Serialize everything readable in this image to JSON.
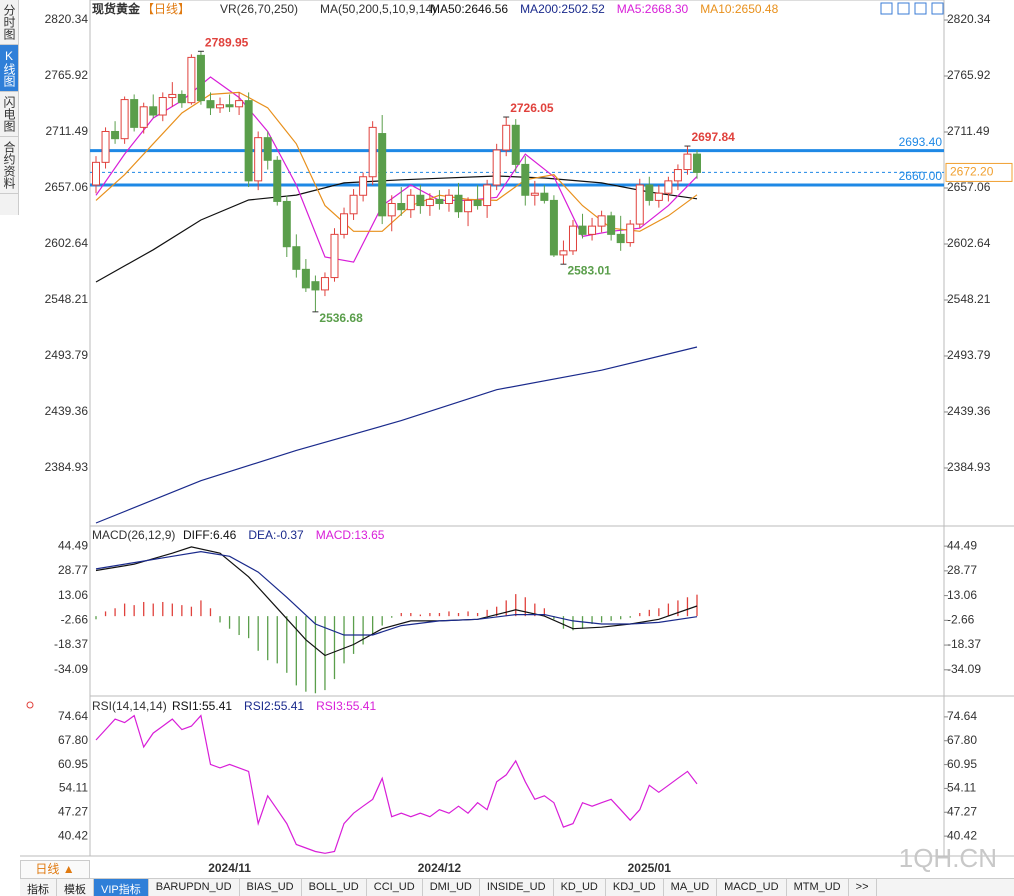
{
  "header": {
    "title": "现货黄金",
    "period": "【日线】",
    "indicator": "VR(26,70,250)",
    "ma_params": "MA(50,200,5,10,9,14)"
  },
  "sidebar": [
    "分时图",
    "K线图",
    "闪电图",
    "合约资料"
  ],
  "chart_data": [
    {
      "type": "candlestick",
      "up_color": "#e0413c",
      "down_color": "#5a9e4b",
      "ylim": [
        2329.5,
        2839.8
      ],
      "yticks": [
        2820.34,
        2765.92,
        2711.49,
        2657.06,
        2602.64,
        2548.21,
        2493.79,
        2439.36,
        2384.93
      ],
      "candles": [
        [
          2660,
          2688,
          2652,
          2682
        ],
        [
          2682,
          2716,
          2676,
          2712
        ],
        [
          2712,
          2722,
          2700,
          2705
        ],
        [
          2705,
          2746,
          2700,
          2743
        ],
        [
          2743,
          2748,
          2712,
          2716
        ],
        [
          2716,
          2740,
          2710,
          2736
        ],
        [
          2736,
          2748,
          2725,
          2728
        ],
        [
          2728,
          2750,
          2722,
          2745
        ],
        [
          2745,
          2760,
          2736,
          2748
        ],
        [
          2748,
          2752,
          2735,
          2740
        ],
        [
          2740,
          2787,
          2738,
          2784
        ],
        [
          2786,
          2789.95,
          2738,
          2742
        ],
        [
          2742,
          2750,
          2728,
          2735
        ],
        [
          2735,
          2745,
          2730,
          2738
        ],
        [
          2738,
          2748,
          2731,
          2736
        ],
        [
          2736,
          2750,
          2728,
          2742
        ],
        [
          2742,
          2750,
          2658,
          2664
        ],
        [
          2664,
          2712,
          2655,
          2706
        ],
        [
          2706,
          2712,
          2675,
          2684
        ],
        [
          2684,
          2688,
          2640,
          2644
        ],
        [
          2644,
          2650,
          2590,
          2600
        ],
        [
          2600,
          2612,
          2570,
          2578
        ],
        [
          2578,
          2588,
          2556,
          2560
        ],
        [
          2566,
          2572,
          2536.68,
          2558
        ],
        [
          2558,
          2575,
          2552,
          2570
        ],
        [
          2570,
          2618,
          2566,
          2612
        ],
        [
          2612,
          2638,
          2608,
          2632
        ],
        [
          2632,
          2656,
          2626,
          2650
        ],
        [
          2650,
          2672,
          2644,
          2668
        ],
        [
          2668,
          2722,
          2660,
          2716
        ],
        [
          2710,
          2728,
          2622,
          2630
        ],
        [
          2630,
          2650,
          2615,
          2642
        ],
        [
          2642,
          2658,
          2630,
          2636
        ],
        [
          2636,
          2656,
          2628,
          2650
        ],
        [
          2650,
          2660,
          2632,
          2640
        ],
        [
          2640,
          2652,
          2630,
          2646
        ],
        [
          2646,
          2655,
          2636,
          2642
        ],
        [
          2642,
          2656,
          2634,
          2650
        ],
        [
          2650,
          2662,
          2628,
          2634
        ],
        [
          2634,
          2648,
          2620,
          2645
        ],
        [
          2645,
          2660,
          2636,
          2640
        ],
        [
          2640,
          2665,
          2628,
          2660
        ],
        [
          2660,
          2700,
          2655,
          2694
        ],
        [
          2694,
          2726.05,
          2688,
          2718
        ],
        [
          2718,
          2724,
          2672,
          2680
        ],
        [
          2680,
          2688,
          2640,
          2650
        ],
        [
          2650,
          2664,
          2640,
          2652
        ],
        [
          2652,
          2660,
          2642,
          2645
        ],
        [
          2645,
          2650,
          2590,
          2592
        ],
        [
          2592,
          2606,
          2583.01,
          2596
        ],
        [
          2596,
          2626,
          2592,
          2620
        ],
        [
          2620,
          2632,
          2608,
          2612
        ],
        [
          2612,
          2628,
          2606,
          2620
        ],
        [
          2620,
          2635,
          2614,
          2630
        ],
        [
          2630,
          2634,
          2606,
          2612
        ],
        [
          2612,
          2630,
          2596,
          2604
        ],
        [
          2604,
          2626,
          2600,
          2622
        ],
        [
          2622,
          2666,
          2618,
          2660
        ],
        [
          2660,
          2668,
          2640,
          2645
        ],
        [
          2645,
          2660,
          2638,
          2652
        ],
        [
          2652,
          2668,
          2644,
          2664
        ],
        [
          2664,
          2680,
          2655,
          2675
        ],
        [
          2675,
          2697.84,
          2670,
          2690
        ],
        [
          2690,
          2694,
          2666,
          2672.2
        ]
      ],
      "series": [
        {
          "name": "MA50:2646.56",
          "color": "#111111",
          "x": [
            0,
            6,
            11,
            16,
            21,
            26,
            32,
            42,
            47,
            53,
            58,
            63
          ],
          "values": [
            2565.7,
            2597,
            2626,
            2645.4,
            2650.2,
            2662,
            2665,
            2668.7,
            2666.8,
            2662,
            2653.2,
            2646.56
          ]
        },
        {
          "name": "MA200:2502.52",
          "color": "#1a2a8c",
          "x": [
            0,
            11,
            21,
            32,
            42,
            53,
            63
          ],
          "values": [
            2331.4,
            2372.6,
            2402,
            2431,
            2461,
            2480,
            2502.52
          ]
        },
        {
          "name": "MA5:2668.30",
          "color": "#d81ed8",
          "x": [
            0,
            3,
            6,
            9,
            12,
            15,
            18,
            21,
            24,
            27,
            30,
            33,
            36,
            39,
            42,
            45,
            48,
            51,
            54,
            57,
            60,
            63
          ],
          "values": [
            2650,
            2690,
            2725,
            2742,
            2765,
            2745,
            2712,
            2660,
            2590,
            2585,
            2640,
            2660,
            2645,
            2645,
            2648,
            2690,
            2668,
            2610,
            2615,
            2618,
            2640,
            2668.3
          ]
        },
        {
          "name": "MA10:2650.48",
          "color": "#e8901c",
          "x": [
            0,
            3,
            6,
            9,
            12,
            15,
            18,
            21,
            24,
            27,
            30,
            33,
            36,
            39,
            42,
            45,
            48,
            51,
            54,
            57,
            60,
            63
          ],
          "values": [
            2645,
            2670,
            2700,
            2730,
            2748,
            2750,
            2735,
            2700,
            2640,
            2615,
            2615,
            2640,
            2650,
            2646,
            2645,
            2665,
            2670,
            2640,
            2618,
            2615,
            2630,
            2650.48
          ]
        }
      ],
      "annotations": [
        {
          "index": 11,
          "value": 2789.95,
          "color": "#e0413c"
        },
        {
          "index": 23,
          "value": 2536.68,
          "color": "#5a9e4b"
        },
        {
          "index": 43,
          "value": 2726.05,
          "color": "#e0413c"
        },
        {
          "index": 49,
          "value": 2583.01,
          "color": "#5a9e4b"
        },
        {
          "index": 62,
          "value": 2697.84,
          "color": "#e0413c"
        }
      ],
      "levels": [
        {
          "value": 2693.4,
          "label": "2693.40",
          "color": "#1e88e5"
        },
        {
          "value": 2660,
          "label": "2660.00",
          "color": "#1e88e5"
        }
      ],
      "last_price": {
        "value": 2672.2,
        "label": "2672.20",
        "color": "#f0a030"
      },
      "x_labels": [
        {
          "index": 14,
          "label": "2024/11"
        },
        {
          "index": 36,
          "label": "2024/12"
        },
        {
          "index": 58,
          "label": "2025/01"
        }
      ]
    },
    {
      "type": "macd",
      "title": "MACD(26,12,9)",
      "ylim": [
        -50.1,
        56.0
      ],
      "yticks": [
        44.49,
        28.77,
        13.06,
        -2.66,
        -18.37,
        -34.09
      ],
      "legend": [
        {
          "text": "DIFF:6.46",
          "color": "#111111"
        },
        {
          "text": "DEA:-0.37",
          "color": "#1a2a8c"
        },
        {
          "text": "MACD:13.65",
          "color": "#d81ed8"
        }
      ],
      "histogram": {
        "up_color": "#e0413c",
        "down_color": "#5a9e4b",
        "values": [
          -2,
          3,
          5,
          8,
          7,
          9,
          8,
          9,
          8,
          7,
          6,
          10,
          5,
          -4,
          -8,
          -12,
          -14,
          -22,
          -28,
          -30,
          -36,
          -44,
          -48,
          -49,
          -47,
          -40,
          -30,
          -24,
          -18,
          -12,
          -6,
          -1,
          2,
          2,
          1,
          2,
          2,
          3,
          2,
          3,
          2,
          4,
          6,
          10,
          14,
          12,
          8,
          5,
          -2,
          -8,
          -9,
          -8,
          -5,
          -4,
          -3,
          -2,
          -1,
          2,
          4,
          5,
          8,
          10,
          12,
          13.65
        ]
      },
      "series": [
        {
          "color": "#111111",
          "x": [
            0,
            4,
            8,
            10,
            13,
            16,
            19,
            22,
            24,
            27,
            30,
            33,
            36,
            40,
            44,
            47,
            50,
            53,
            56,
            59,
            63
          ],
          "values": [
            29,
            33,
            40,
            44,
            40,
            25,
            5,
            -15,
            -25,
            -18,
            -8,
            -3,
            -3,
            -2,
            4,
            0,
            -8,
            -7,
            -5,
            -2,
            6.46
          ]
        },
        {
          "color": "#1a2a8c",
          "x": [
            0,
            4,
            8,
            11,
            14,
            17,
            20,
            23,
            26,
            29,
            32,
            36,
            40,
            44,
            47,
            50,
            53,
            56,
            59,
            63
          ],
          "values": [
            30,
            34,
            38,
            41,
            38,
            28,
            12,
            -5,
            -12,
            -12,
            -6,
            -3,
            -2,
            1,
            1,
            -3,
            -5,
            -5,
            -4,
            -0.37
          ]
        }
      ]
    },
    {
      "type": "rsi",
      "title": "RSI(14,14,14)",
      "ylim": [
        35.0,
        80.06
      ],
      "yticks": [
        74.64,
        {
          "value": 67.8,
          "label": "67.80"
        },
        60.95,
        54.11,
        47.27,
        40.42
      ],
      "legend": [
        {
          "text": "RSI1:55.41",
          "color": "#111111"
        },
        {
          "text": "RSI2:55.41",
          "color": "#1a2a8c"
        },
        {
          "text": "RSI3:55.41",
          "color": "#d81ed8"
        }
      ],
      "series": [
        {
          "color": "#d81ed8",
          "values": [
            68,
            71,
            74,
            73,
            75,
            66,
            70,
            72,
            74,
            71,
            72,
            75,
            61,
            60,
            61,
            60,
            59,
            44,
            52,
            48,
            44,
            38,
            37,
            36,
            35.5,
            36,
            44,
            47,
            49,
            51,
            57,
            46,
            47,
            46,
            47,
            46,
            48,
            47,
            49,
            47,
            50,
            48,
            56,
            58,
            62,
            56,
            51,
            52,
            50,
            43,
            44,
            50,
            49,
            50,
            51,
            48,
            45,
            48,
            55,
            53,
            55,
            57,
            59,
            55.41
          ]
        }
      ]
    }
  ],
  "footer": {
    "period_button": "日线 ▲",
    "tabs": [
      "指标",
      "模板",
      "VIP指标",
      "BARUPDN_UD",
      "BIAS_UD",
      "BOLL_UD",
      "CCI_UD",
      "DMI_UD",
      "INSIDE_UD",
      "KD_UD",
      "KDJ_UD",
      "MA_UD",
      "MACD_UD",
      "MTM_UD",
      ">>"
    ],
    "watermark": "1QH.CN"
  }
}
